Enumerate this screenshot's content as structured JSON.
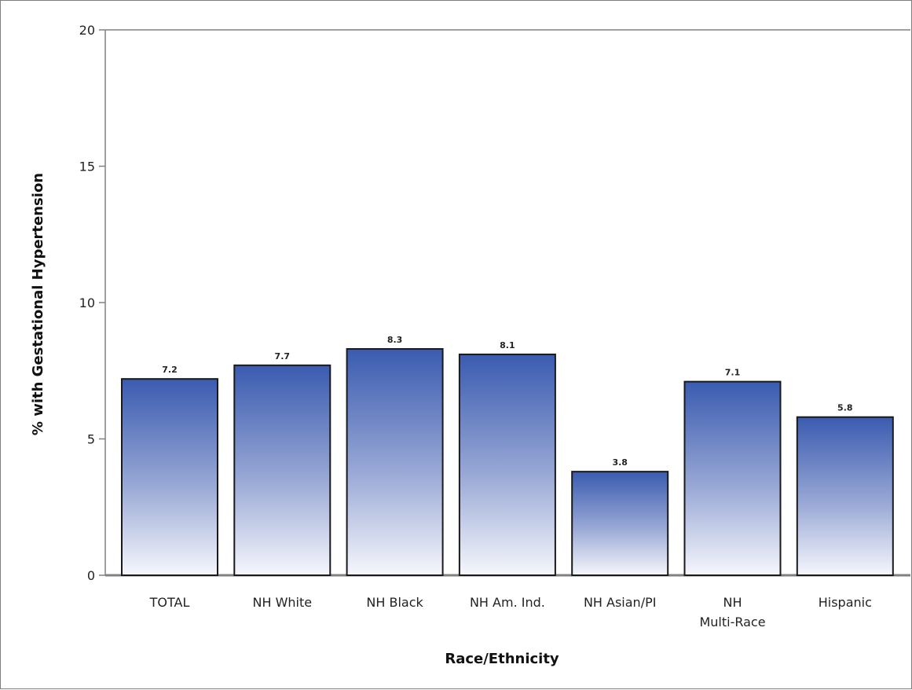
{
  "chart_data": {
    "type": "bar",
    "title": "",
    "xlabel": "Race/Ethnicity",
    "ylabel": "% with Gestational Hypertension",
    "ylim": [
      0,
      20
    ],
    "yticks": [
      0,
      5,
      10,
      15,
      20
    ],
    "grid": false,
    "legend": "none",
    "categories": [
      "TOTAL",
      "NH White",
      "NH Black",
      "NH Am. Ind.",
      "NH Asian/PI",
      "NH\nMulti-Race",
      "Hispanic"
    ],
    "values": [
      7.2,
      7.7,
      8.3,
      8.1,
      3.8,
      7.1,
      5.8
    ],
    "value_labels": [
      "7.2",
      "7.7",
      "8.3",
      "8.1",
      "3.8",
      "7.1",
      "5.8"
    ],
    "colors": {
      "bar_top": "#3a5bb0",
      "bar_bottom": "#f6f7fc",
      "bar_border": "#1a1a1a",
      "axis": "#808080"
    }
  }
}
